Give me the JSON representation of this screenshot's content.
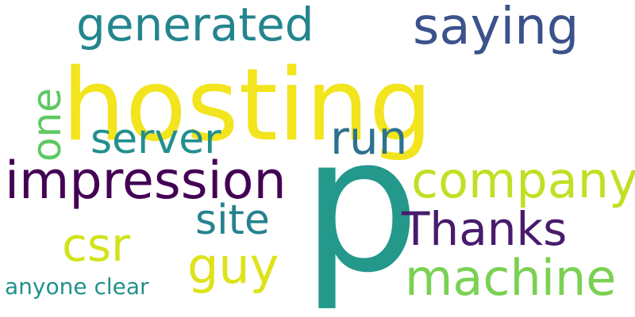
{
  "words": [
    {
      "text": "hosting",
      "color": "#f2e41d"
    },
    {
      "text": "p",
      "color": "#23988b"
    },
    {
      "text": "generated",
      "color": "#24858e"
    },
    {
      "text": "saying",
      "color": "#3b528b"
    },
    {
      "text": "one",
      "color": "#5ec962"
    },
    {
      "text": "server",
      "color": "#21908d"
    },
    {
      "text": "run",
      "color": "#2c728e"
    },
    {
      "text": "impression",
      "color": "#440154"
    },
    {
      "text": "company",
      "color": "#c2df23"
    },
    {
      "text": "site",
      "color": "#26828e"
    },
    {
      "text": "csr",
      "color": "#d2e21b"
    },
    {
      "text": "Thanks",
      "color": "#481b6d"
    },
    {
      "text": "guy",
      "color": "#dde318"
    },
    {
      "text": "machine",
      "color": "#7ad151"
    },
    {
      "text": "anyone clear",
      "color": "#21918c"
    }
  ]
}
